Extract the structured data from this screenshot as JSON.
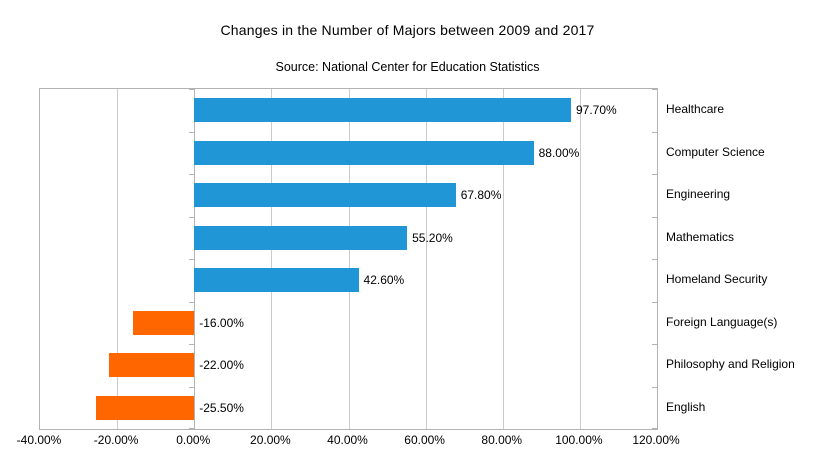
{
  "chart_data": {
    "type": "bar",
    "orientation": "horizontal",
    "title": "Changes in the Number of Majors between 2009 and 2017",
    "subtitle": "Source: National Center for Education Statistics",
    "categories": [
      "Healthcare",
      "Computer Science",
      "Engineering",
      "Mathematics",
      "Homeland Security",
      "Foreign Language(s)",
      "Philosophy and Religion",
      "English"
    ],
    "values": [
      97.7,
      88.0,
      67.8,
      55.2,
      42.6,
      -16.0,
      -22.0,
      -25.5
    ],
    "value_labels": [
      "97.70%",
      "88.00%",
      "67.80%",
      "55.20%",
      "42.60%",
      "-16.00%",
      "-22.00%",
      "-25.50%"
    ],
    "xlabel": "",
    "ylabel": "",
    "xlim": [
      -40,
      120
    ],
    "x_tick_interval": 20,
    "x_ticks": [
      -40,
      -20,
      0,
      20,
      40,
      60,
      80,
      100,
      120
    ],
    "x_tick_labels": [
      "-40.00%",
      "-20.00%",
      "0.00%",
      "20.00%",
      "40.00%",
      "60.00%",
      "80.00%",
      "100.00%",
      "120.00%"
    ],
    "grid": true,
    "legend": false,
    "colors": {
      "positive_bar": "#2196d6",
      "negative_bar": "#ff6600",
      "gridline": "#cccccc",
      "axis_border": "#b3b3b3",
      "text": "#000000",
      "background": "#ffffff"
    }
  }
}
